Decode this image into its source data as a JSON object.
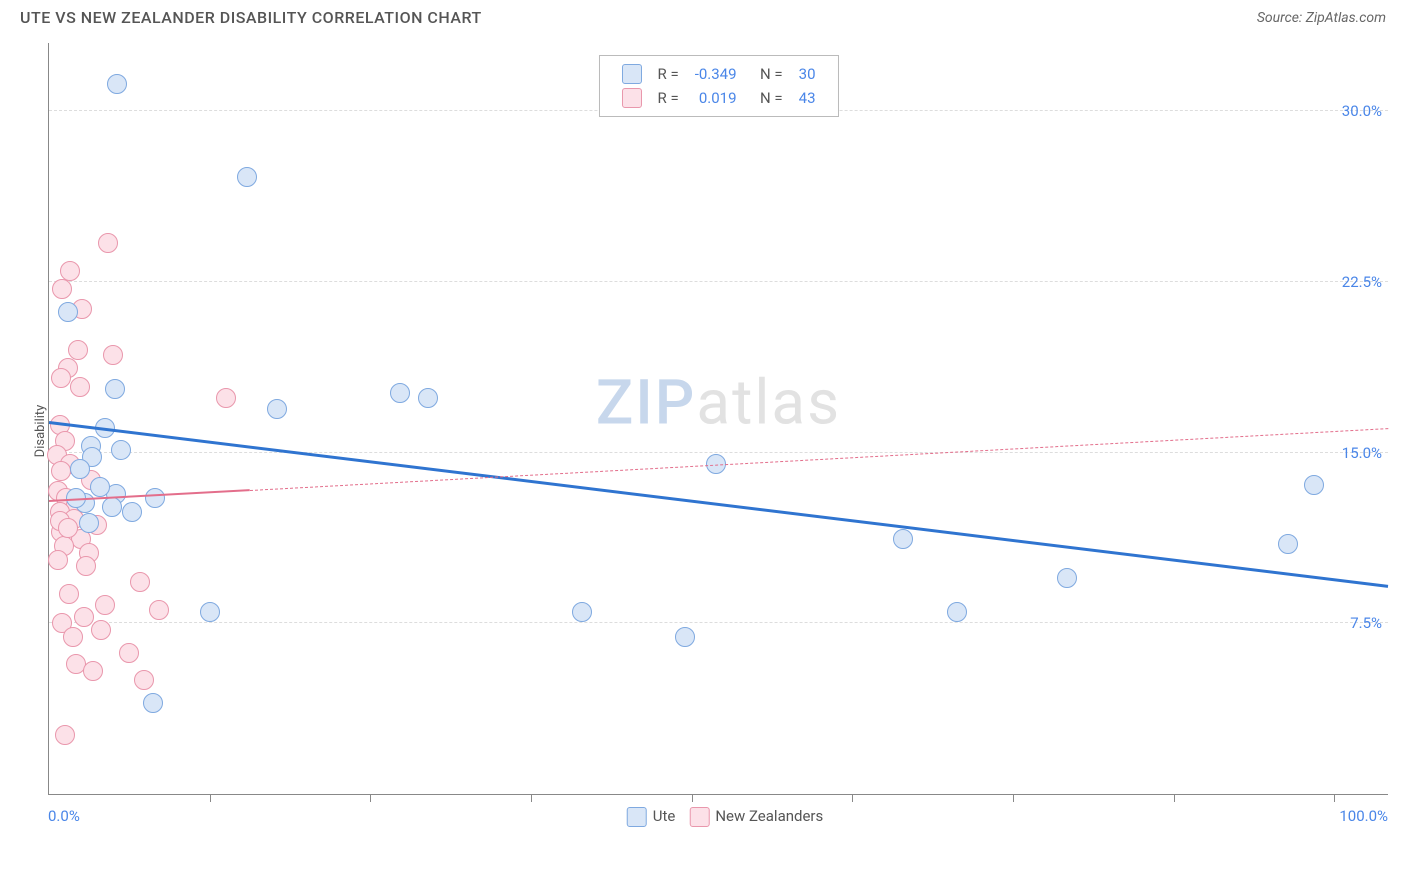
{
  "title": "UTE VS NEW ZEALANDER DISABILITY CORRELATION CHART",
  "source_label": "Source: ZipAtlas.com",
  "ylabel": "Disability",
  "watermark": {
    "zip": "ZIP",
    "atlas": "atlas"
  },
  "chart": {
    "type": "scatter",
    "xlim": [
      0,
      100
    ],
    "ylim": [
      0,
      33
    ],
    "x_ticks_minor": [
      12,
      24,
      36,
      48,
      60,
      72,
      84,
      96
    ],
    "x_tick_labels": [
      {
        "x": 0,
        "label": "0.0%",
        "align": "left"
      },
      {
        "x": 100,
        "label": "100.0%",
        "align": "right"
      }
    ],
    "y_gridlines": [
      {
        "y": 7.5,
        "label": "7.5%"
      },
      {
        "y": 15.0,
        "label": "15.0%"
      },
      {
        "y": 22.5,
        "label": "22.5%"
      },
      {
        "y": 30.0,
        "label": "30.0%"
      }
    ],
    "grid_color": "#dddddd",
    "axis_color": "#888888",
    "background_color": "#ffffff",
    "point_radius": 10,
    "point_border_width": 1.5,
    "tick_label_color": "#4a86e8"
  },
  "series": [
    {
      "name": "Ute",
      "color_fill": "#d9e6f7",
      "color_stroke": "#7fa9e0",
      "R": "-0.349",
      "N": "30",
      "trend": {
        "x1": 0,
        "y1": 16.4,
        "x2": 100,
        "y2": 9.2,
        "solid_until_x": 100,
        "color": "#2f74d0",
        "width": 3
      },
      "points": [
        {
          "x": 5.1,
          "y": 31.2
        },
        {
          "x": 14.8,
          "y": 27.1
        },
        {
          "x": 1.4,
          "y": 21.2
        },
        {
          "x": 4.9,
          "y": 17.8
        },
        {
          "x": 26.2,
          "y": 17.6
        },
        {
          "x": 28.3,
          "y": 17.4
        },
        {
          "x": 17.0,
          "y": 16.9
        },
        {
          "x": 3.1,
          "y": 15.3
        },
        {
          "x": 5.4,
          "y": 15.1
        },
        {
          "x": 3.2,
          "y": 14.8
        },
        {
          "x": 49.8,
          "y": 14.5
        },
        {
          "x": 94.5,
          "y": 13.6
        },
        {
          "x": 5.0,
          "y": 13.2
        },
        {
          "x": 7.9,
          "y": 13.0
        },
        {
          "x": 2.7,
          "y": 12.8
        },
        {
          "x": 4.7,
          "y": 12.6
        },
        {
          "x": 92.5,
          "y": 11.0
        },
        {
          "x": 63.8,
          "y": 11.2
        },
        {
          "x": 76.0,
          "y": 9.5
        },
        {
          "x": 67.8,
          "y": 8.0
        },
        {
          "x": 39.8,
          "y": 8.0
        },
        {
          "x": 12.0,
          "y": 8.0
        },
        {
          "x": 47.5,
          "y": 6.9
        },
        {
          "x": 7.8,
          "y": 4.0
        },
        {
          "x": 3.8,
          "y": 13.5
        },
        {
          "x": 6.2,
          "y": 12.4
        },
        {
          "x": 2.0,
          "y": 13.0
        },
        {
          "x": 3.0,
          "y": 11.9
        },
        {
          "x": 4.2,
          "y": 16.1
        },
        {
          "x": 2.3,
          "y": 14.3
        }
      ]
    },
    {
      "name": "New Zealanders",
      "color_fill": "#fce1e8",
      "color_stroke": "#e997ac",
      "R": "0.019",
      "N": "43",
      "trend": {
        "x1": 0,
        "y1": 12.9,
        "x2": 100,
        "y2": 16.1,
        "solid_until_x": 15,
        "color": "#e36e8b",
        "width": 2
      },
      "points": [
        {
          "x": 4.4,
          "y": 24.2
        },
        {
          "x": 1.6,
          "y": 23.0
        },
        {
          "x": 1.0,
          "y": 22.2
        },
        {
          "x": 2.5,
          "y": 21.3
        },
        {
          "x": 2.2,
          "y": 19.5
        },
        {
          "x": 4.8,
          "y": 19.3
        },
        {
          "x": 1.4,
          "y": 18.7
        },
        {
          "x": 0.9,
          "y": 18.3
        },
        {
          "x": 2.3,
          "y": 17.9
        },
        {
          "x": 13.2,
          "y": 17.4
        },
        {
          "x": 0.8,
          "y": 16.2
        },
        {
          "x": 1.2,
          "y": 15.5
        },
        {
          "x": 0.6,
          "y": 14.9
        },
        {
          "x": 1.6,
          "y": 14.5
        },
        {
          "x": 0.9,
          "y": 14.2
        },
        {
          "x": 3.1,
          "y": 13.8
        },
        {
          "x": 0.7,
          "y": 13.3
        },
        {
          "x": 1.3,
          "y": 13.0
        },
        {
          "x": 2.0,
          "y": 12.7
        },
        {
          "x": 0.8,
          "y": 12.4
        },
        {
          "x": 1.9,
          "y": 12.1
        },
        {
          "x": 3.6,
          "y": 11.8
        },
        {
          "x": 0.9,
          "y": 11.5
        },
        {
          "x": 2.4,
          "y": 11.2
        },
        {
          "x": 1.1,
          "y": 10.9
        },
        {
          "x": 3.0,
          "y": 10.6
        },
        {
          "x": 0.7,
          "y": 10.3
        },
        {
          "x": 2.8,
          "y": 10.0
        },
        {
          "x": 6.8,
          "y": 9.3
        },
        {
          "x": 1.5,
          "y": 8.8
        },
        {
          "x": 8.2,
          "y": 8.1
        },
        {
          "x": 4.2,
          "y": 8.3
        },
        {
          "x": 2.6,
          "y": 7.8
        },
        {
          "x": 1.0,
          "y": 7.5
        },
        {
          "x": 3.9,
          "y": 7.2
        },
        {
          "x": 1.8,
          "y": 6.9
        },
        {
          "x": 6.0,
          "y": 6.2
        },
        {
          "x": 2.0,
          "y": 5.7
        },
        {
          "x": 3.3,
          "y": 5.4
        },
        {
          "x": 7.1,
          "y": 5.0
        },
        {
          "x": 1.2,
          "y": 2.6
        },
        {
          "x": 0.8,
          "y": 12.0
        },
        {
          "x": 1.4,
          "y": 11.7
        }
      ]
    }
  ],
  "legend_top_labels": {
    "R": "R =",
    "N": "N ="
  },
  "legend_bottom": [
    {
      "name": "Ute",
      "fill": "#d9e6f7",
      "stroke": "#7fa9e0"
    },
    {
      "name": "New Zealanders",
      "fill": "#fce1e8",
      "stroke": "#e997ac"
    }
  ]
}
